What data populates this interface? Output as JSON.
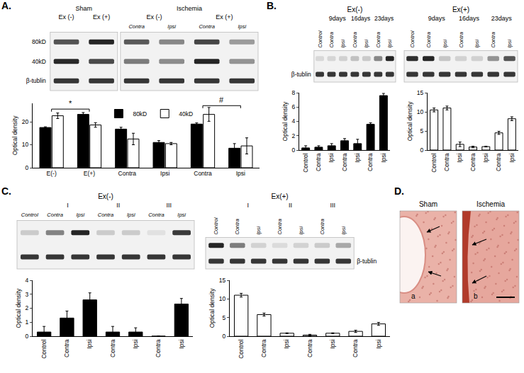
{
  "chart_data": [
    {
      "type": "bar",
      "ylabel": "Optical density",
      "categories": [
        "E(-)",
        "E(+)",
        "Contra",
        "Ipsi",
        "Contra",
        "Ipsi"
      ],
      "series": [
        {
          "name": "80kD",
          "color": "#000000",
          "values": [
            17.5,
            23.2,
            16.8,
            11,
            19,
            8.5
          ],
          "errors": [
            0.3,
            0.8,
            0.8,
            0.8,
            0.5,
            2
          ]
        },
        {
          "name": "40kD",
          "color": "#ffffff",
          "values": [
            22.6,
            18.6,
            12.5,
            10.5,
            23.2,
            9.5
          ],
          "errors": [
            1.2,
            1,
            2.5,
            0.5,
            3,
            3.5
          ]
        }
      ],
      "ylim": [
        0,
        28
      ],
      "yticks": [
        0,
        10,
        20
      ],
      "legend": "top",
      "annotations": [
        {
          "text": "*",
          "x": [
            0,
            1
          ],
          "y": 25.5
        },
        {
          "text": "#",
          "x": [
            4,
            5
          ],
          "y": 27
        }
      ]
    },
    {
      "type": "bar",
      "ylabel": "Optical density",
      "categories": [
        "Control",
        "Contra",
        "Ipsi",
        "Contra",
        "Ipsi",
        "Contra",
        "Ipsi"
      ],
      "series": [
        {
          "color": "#000000",
          "values": [
            0.3,
            0.4,
            0.6,
            1.3,
            0.9,
            3.6,
            7.6
          ],
          "errors": [
            0.3,
            0.2,
            0.3,
            0.3,
            0.6,
            0.2,
            0.3
          ]
        }
      ],
      "ylim": [
        0,
        8
      ],
      "yticks": [
        0,
        2,
        4,
        6,
        8
      ]
    },
    {
      "type": "bar",
      "ylabel": "Optical density",
      "categories": [
        "Control",
        "Contra",
        "Ipsi",
        "Contra",
        "Ipsi",
        "Contra",
        "Ipsi"
      ],
      "series": [
        {
          "color": "#ffffff",
          "values": [
            10.5,
            11,
            1.5,
            0.8,
            0.9,
            4.5,
            8.2
          ],
          "errors": [
            0.5,
            0.5,
            0.6,
            0.2,
            0.1,
            0.4,
            0.5
          ]
        }
      ],
      "ylim": [
        0,
        15
      ],
      "yticks": [
        0,
        5,
        10,
        15
      ]
    },
    {
      "type": "bar",
      "ylabel": "Optical density",
      "categories": [
        "Control",
        "Contra",
        "Ipsi",
        "Contra",
        "Ipsi",
        "Contra",
        "Ipsi"
      ],
      "series": [
        {
          "color": "#000000",
          "values": [
            0.3,
            1.3,
            2.6,
            0.3,
            0.3,
            0,
            2.3
          ],
          "errors": [
            0.4,
            0.5,
            0.5,
            0.4,
            0.3,
            0,
            0.4
          ]
        }
      ],
      "ylim": [
        0,
        4
      ],
      "yticks": [
        0,
        1,
        2,
        3,
        4
      ]
    },
    {
      "type": "bar",
      "ylabel": "Optical density",
      "categories": [
        "Control",
        "Contra",
        "Ipsi",
        "Contra",
        "Ipsi",
        "Contra",
        "Ipsi"
      ],
      "series": [
        {
          "color": "#ffffff",
          "values": [
            11,
            5.8,
            0.8,
            0.3,
            0.8,
            1.3,
            3.3
          ],
          "errors": [
            0.5,
            0.4,
            0.1,
            0.2,
            0.1,
            0.3,
            0.4
          ]
        }
      ],
      "ylim": [
        0,
        15
      ],
      "yticks": [
        0,
        5,
        10,
        15
      ]
    }
  ],
  "panels": [
    {
      "letter": "A.",
      "blots": [
        {
          "groups": [
            {
              "text": "Sham",
              "groups": [
                {
                  "text": "Ex (-)",
                  "lanes": [
                    null
                  ]
                },
                {
                  "text": "Ex (+)",
                  "lanes": [
                    null
                  ]
                }
              ]
            },
            {
              "text": "Ischemia",
              "groups": [
                {
                  "text": "Ex (-)",
                  "lanes": [
                    "Contra",
                    "Ipsi"
                  ]
                },
                {
                  "text": "Ex (+)",
                  "lanes": [
                    "Contra",
                    "Ipsi"
                  ]
                }
              ]
            }
          ],
          "rows": [
            "80kD",
            "40kD",
            "β-tublin"
          ]
        }
      ]
    },
    {
      "letter": "B.",
      "blots": [
        {
          "title": "Ex(-)",
          "groups": [
            {
              "lanes": [
                "Control"
              ]
            },
            {
              "text": "9days",
              "lanes": [
                "Contra",
                "Ipsi"
              ]
            },
            {
              "text": "16days",
              "lanes": [
                "Contra",
                "Ipsi"
              ]
            },
            {
              "text": "23days",
              "lanes": [
                "Contra",
                "Ipsi"
              ]
            }
          ],
          "rows": [
            null,
            "β-tublin"
          ]
        },
        {
          "title": "Ex(+)",
          "groups": [
            {
              "lanes": [
                "Control"
              ]
            },
            {
              "text": "9days",
              "lanes": [
                "Contra",
                "Ipsi"
              ]
            },
            {
              "text": "16days",
              "lanes": [
                "Contra",
                "Ipsi"
              ]
            },
            {
              "text": "23days",
              "lanes": [
                "Contra",
                "Ipsi"
              ]
            }
          ],
          "rows": [
            null,
            null
          ]
        }
      ]
    },
    {
      "letter": "C.",
      "blots": [
        {
          "title": "Ex(-)",
          "groups": [
            {
              "lanes": [
                "Control"
              ]
            },
            {
              "text": "I",
              "lanes": [
                "Contra",
                "Ipsi"
              ]
            },
            {
              "text": "II",
              "lanes": [
                "Contra",
                "Ipsi"
              ]
            },
            {
              "text": "III",
              "lanes": [
                "Contra",
                "Ipsi"
              ]
            }
          ],
          "rows": [
            null,
            null
          ]
        },
        {
          "title": "Ex(+)",
          "groups": [
            {
              "lanes": [
                "Control"
              ]
            },
            {
              "text": "I",
              "lanes": [
                "Contra",
                "Ipsi"
              ]
            },
            {
              "text": "II",
              "lanes": [
                "Contra",
                "Ipsi"
              ]
            },
            {
              "text": "III",
              "lanes": [
                "Contra",
                "Ipsi"
              ]
            }
          ],
          "rows": [
            null,
            "β-tublin"
          ],
          "row_labels_side": "right"
        }
      ]
    },
    {
      "letter": "D.",
      "images": [
        {
          "title": "Sham",
          "label": "a"
        },
        {
          "title": "Ischemia",
          "label": "b"
        }
      ]
    }
  ]
}
